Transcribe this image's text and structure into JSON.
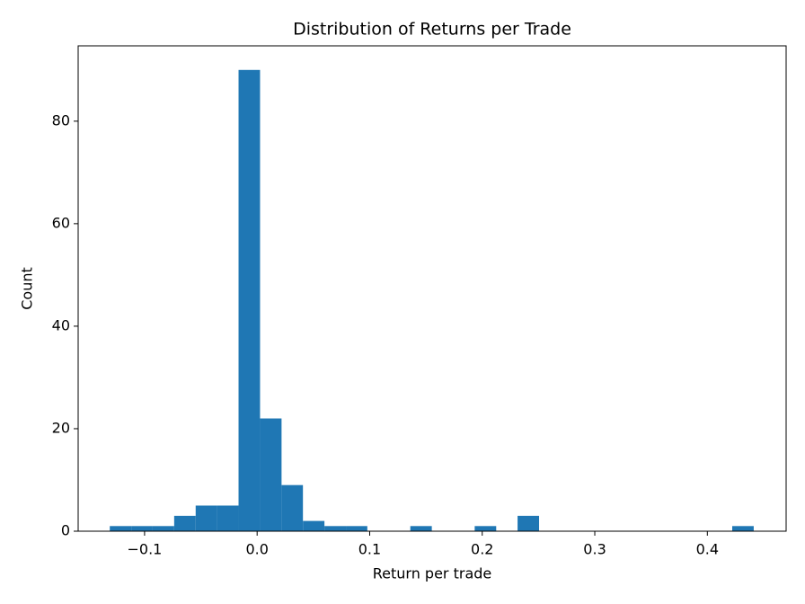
{
  "chart_data": {
    "type": "histogram",
    "title": "Distribution of Returns per Trade",
    "xlabel": "Return per trade",
    "ylabel": "Count",
    "color": "#1f77b4",
    "bins": [
      -0.1309,
      -0.1118,
      -0.0928,
      -0.0737,
      -0.0546,
      -0.0356,
      -0.0165,
      0.0026,
      0.0217,
      0.0407,
      0.0598,
      0.0789,
      0.0979,
      0.117,
      0.1361,
      0.1552,
      0.1742,
      0.1933,
      0.2124,
      0.2314,
      0.2505,
      0.2696,
      0.2886,
      0.3077,
      0.3268,
      0.3459,
      0.3649,
      0.384,
      0.4031,
      0.4221,
      0.4412
    ],
    "counts": [
      1,
      1,
      1,
      3,
      5,
      5,
      90,
      22,
      9,
      2,
      1,
      1,
      0,
      0,
      1,
      0,
      0,
      1,
      0,
      3,
      0,
      0,
      0,
      0,
      0,
      0,
      0,
      0,
      0,
      1
    ],
    "xlim": [
      -0.159,
      0.47
    ],
    "ylim": [
      0,
      94.7
    ],
    "xticks": [
      {
        "value": -0.1,
        "label": "−0.1"
      },
      {
        "value": 0,
        "label": "0.0"
      },
      0.1,
      0.2,
      0.3,
      0.4
    ],
    "yticks": [
      0,
      20,
      40,
      60,
      80
    ],
    "grid": false
  }
}
